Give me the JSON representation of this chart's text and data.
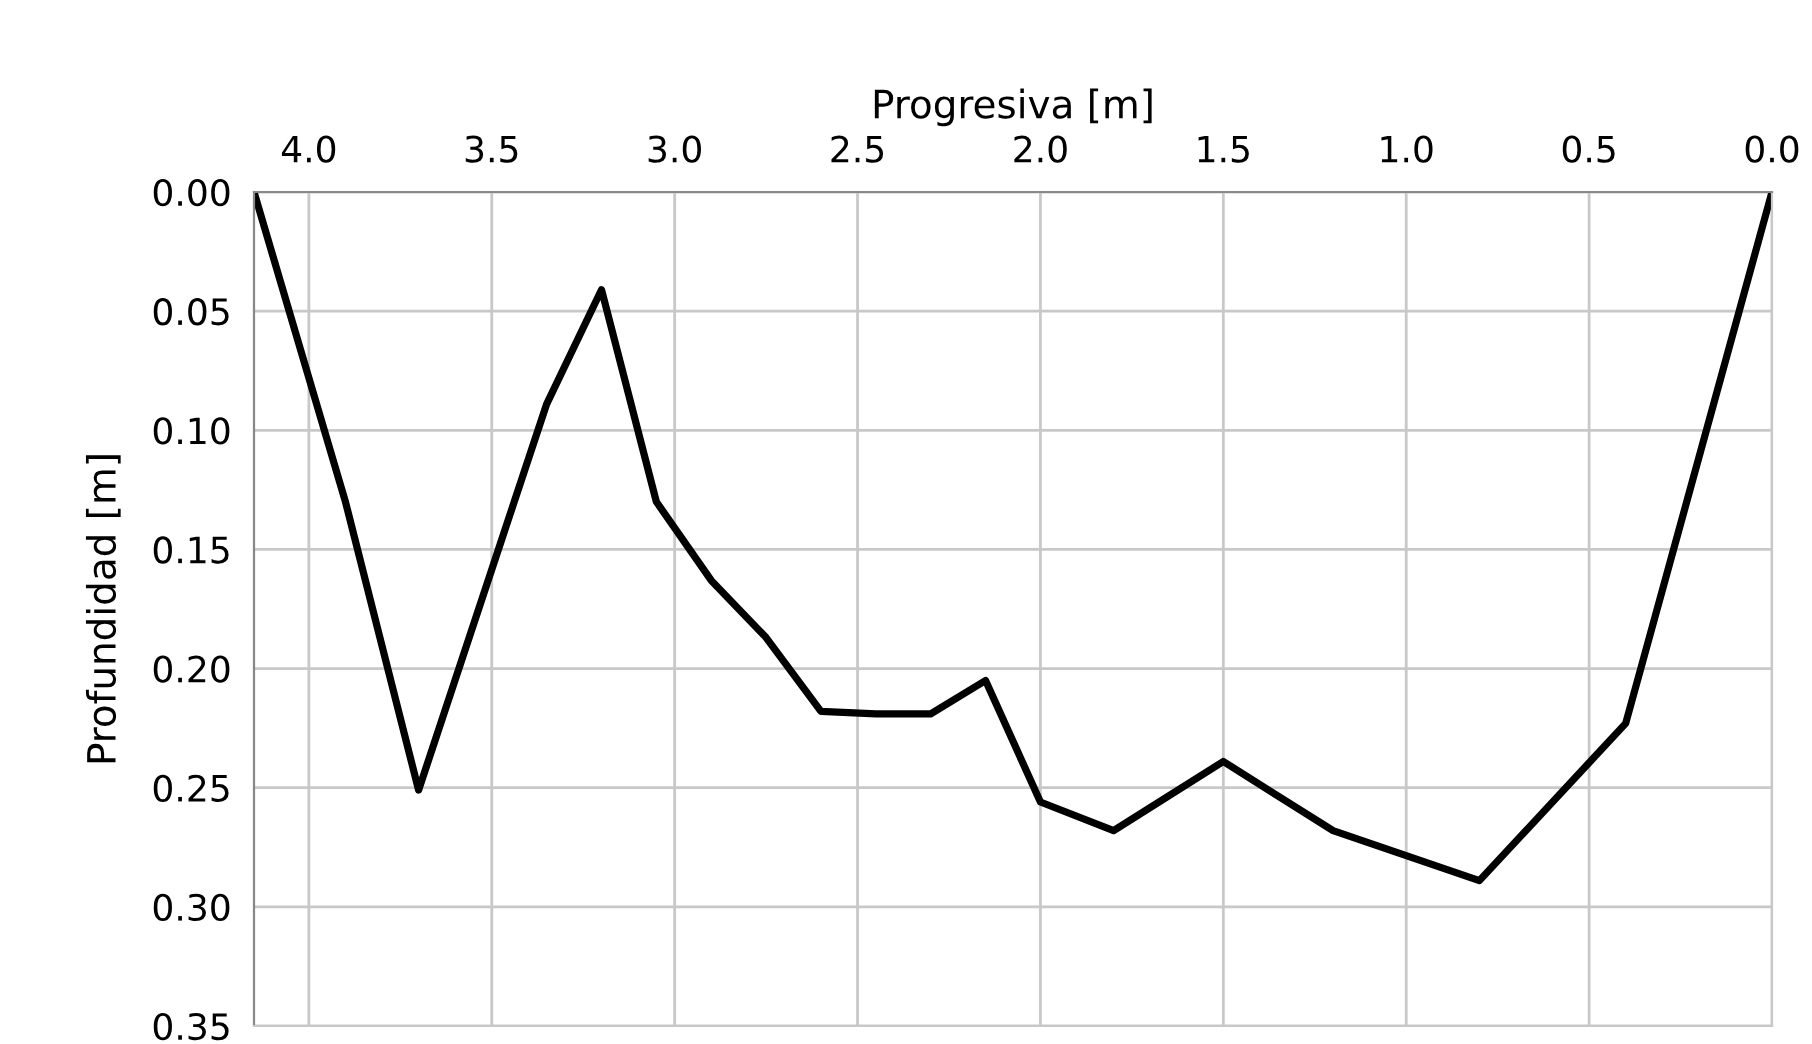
{
  "chart_data": {
    "type": "line",
    "xlabel": "Progresiva [m]",
    "ylabel": "Profundidad [m]",
    "x": [
      4.15,
      3.9,
      3.7,
      3.35,
      3.2,
      3.05,
      2.9,
      2.75,
      2.6,
      2.45,
      2.3,
      2.15,
      2.0,
      1.8,
      1.5,
      1.2,
      0.8,
      0.4,
      0.0
    ],
    "series": [
      {
        "color": "#000000",
        "values": [
          0.0,
          0.13,
          0.251,
          0.089,
          0.041,
          0.13,
          0.163,
          0.187,
          0.218,
          0.219,
          0.219,
          0.205,
          0.256,
          0.268,
          0.239,
          0.268,
          0.289,
          0.223,
          0.0
        ]
      }
    ],
    "xlim": [
      4.15,
      0.0
    ],
    "xticks": [
      {
        "value": 4.0,
        "label": "4.0"
      },
      {
        "value": 3.5,
        "label": "3.5"
      },
      {
        "value": 3.0,
        "label": "3.0"
      },
      {
        "value": 2.5,
        "label": "2.5"
      },
      {
        "value": 2.0,
        "label": "2.0"
      },
      {
        "value": 1.5,
        "label": "1.5"
      },
      {
        "value": 1.0,
        "label": "1.0"
      },
      {
        "value": 0.5,
        "label": "0.5"
      },
      {
        "value": 0.0,
        "label": "0.0"
      }
    ],
    "ylim": [
      0.35,
      0.0
    ],
    "yticks": [
      {
        "value": 0.0,
        "label": "0.00"
      },
      {
        "value": 0.05,
        "label": "0.05"
      },
      {
        "value": 0.1,
        "label": "0.10"
      },
      {
        "value": 0.15,
        "label": "0.15"
      },
      {
        "value": 0.2,
        "label": "0.20"
      },
      {
        "value": 0.25,
        "label": "0.25"
      },
      {
        "value": 0.3,
        "label": "0.30"
      },
      {
        "value": 0.35,
        "label": "0.35"
      }
    ],
    "grid": true,
    "marker": "none",
    "line_style": "solid"
  }
}
